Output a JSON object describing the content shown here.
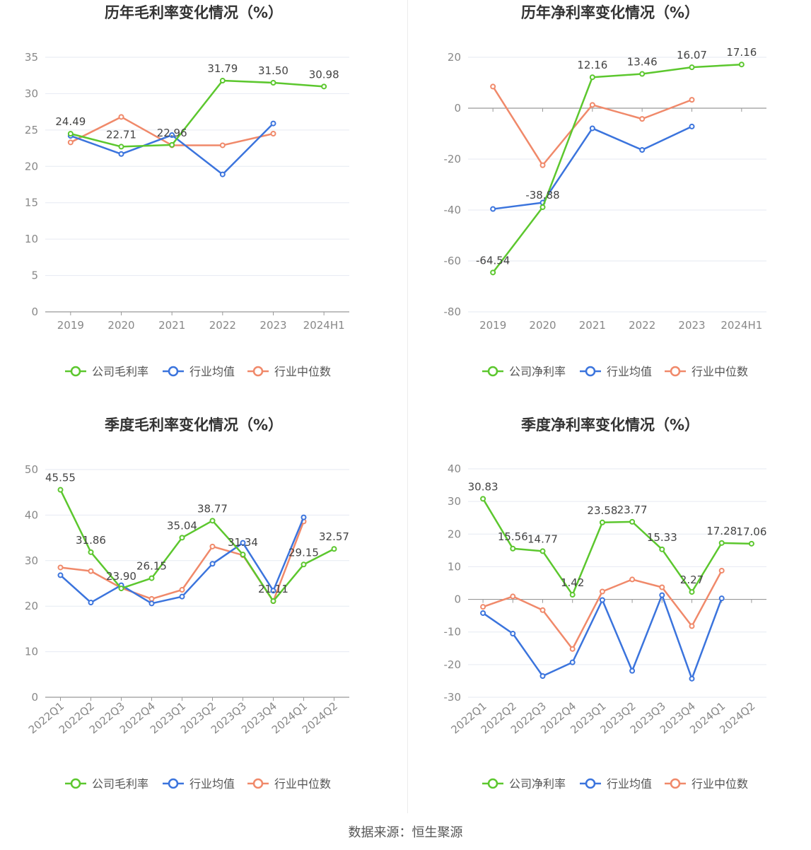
{
  "colors": {
    "company": "#5cc72e",
    "avg": "#3b74dd",
    "median": "#f0896a",
    "axis": "#888888",
    "grid": "#e6eaf2"
  },
  "legend": {
    "gross_company": "公司毛利率",
    "net_company": "公司净利率",
    "avg": "行业均值",
    "median": "行业中位数"
  },
  "footer": "数据来源：恒生聚源",
  "chart_data": [
    {
      "type": "line",
      "title": "历年毛利率变化情况（%）",
      "categories": [
        "2019",
        "2020",
        "2021",
        "2022",
        "2023",
        "2024H1"
      ],
      "ylim": [
        0,
        35
      ],
      "yticks": [
        0,
        5,
        10,
        15,
        20,
        25,
        30,
        35
      ],
      "rotated_labels": false,
      "series": [
        {
          "name": "公司毛利率",
          "values": [
            24.49,
            22.71,
            22.96,
            31.79,
            31.5,
            30.98
          ],
          "labeled": true
        },
        {
          "name": "行业均值",
          "values": [
            24.2,
            21.7,
            24.3,
            18.9,
            25.9,
            null
          ]
        },
        {
          "name": "行业中位数",
          "values": [
            23.3,
            26.8,
            22.9,
            22.9,
            24.5,
            null
          ]
        }
      ],
      "labels": [
        "24.49",
        "22.71",
        "22.96",
        "31.79",
        "31.50",
        "30.98"
      ]
    },
    {
      "type": "line",
      "title": "历年净利率变化情况（%）",
      "categories": [
        "2019",
        "2020",
        "2021",
        "2022",
        "2023",
        "2024H1"
      ],
      "ylim": [
        -80,
        20
      ],
      "yticks": [
        -80,
        -60,
        -40,
        -20,
        0,
        20
      ],
      "rotated_labels": false,
      "series": [
        {
          "name": "公司净利率",
          "values": [
            -64.54,
            -38.88,
            12.16,
            13.46,
            16.07,
            17.16
          ],
          "labeled": true
        },
        {
          "name": "行业均值",
          "values": [
            -39.6,
            -37.1,
            -7.9,
            -16.4,
            -7.2,
            null
          ]
        },
        {
          "name": "行业中位数",
          "values": [
            8.5,
            -22.4,
            1.3,
            -4.2,
            3.3,
            null
          ]
        }
      ],
      "labels": [
        "-64.54",
        "-38.88",
        "12.16",
        "13.46",
        "16.07",
        "17.16"
      ]
    },
    {
      "type": "line",
      "title": "季度毛利率变化情况（%）",
      "categories": [
        "2022Q1",
        "2022Q2",
        "2022Q3",
        "2022Q4",
        "2023Q1",
        "2023Q2",
        "2023Q3",
        "2023Q4",
        "2024Q1",
        "2024Q2"
      ],
      "ylim": [
        0,
        50
      ],
      "yticks": [
        0,
        10,
        20,
        30,
        40,
        50
      ],
      "rotated_labels": true,
      "series": [
        {
          "name": "公司毛利率",
          "values": [
            45.55,
            31.86,
            23.9,
            26.15,
            35.04,
            38.77,
            31.34,
            21.11,
            29.15,
            32.57
          ],
          "labeled": true
        },
        {
          "name": "行业均值",
          "values": [
            26.8,
            20.8,
            24.6,
            20.6,
            22.1,
            29.3,
            33.9,
            23.4,
            39.5,
            null
          ]
        },
        {
          "name": "行业中位数",
          "values": [
            28.5,
            27.7,
            24.0,
            21.6,
            23.6,
            33.1,
            31.2,
            21.1,
            38.6,
            null
          ]
        }
      ],
      "labels": [
        "45.55",
        "31.86",
        "23.90",
        "26.15",
        "35.04",
        "38.77",
        "31.34",
        "21.11",
        "29.15",
        "32.57"
      ]
    },
    {
      "type": "line",
      "title": "季度净利率变化情况（%）",
      "categories": [
        "2022Q1",
        "2022Q2",
        "2022Q3",
        "2022Q4",
        "2023Q1",
        "2023Q2",
        "2023Q3",
        "2023Q4",
        "2024Q1",
        "2024Q2"
      ],
      "ylim": [
        -30,
        40
      ],
      "yticks": [
        -30,
        -20,
        -10,
        0,
        10,
        20,
        30,
        40
      ],
      "rotated_labels": true,
      "series": [
        {
          "name": "公司净利率",
          "values": [
            30.83,
            15.56,
            14.77,
            1.42,
            23.58,
            23.77,
            15.33,
            2.27,
            17.28,
            17.06
          ],
          "labeled": true
        },
        {
          "name": "行业均值",
          "values": [
            -4.2,
            -10.5,
            -23.5,
            -19.3,
            -0.2,
            -21.9,
            1.3,
            -24.3,
            0.3,
            null
          ]
        },
        {
          "name": "行业中位数",
          "values": [
            -2.3,
            0.9,
            -3.3,
            -15.2,
            2.4,
            6.1,
            3.7,
            -8.2,
            8.8,
            null
          ]
        }
      ],
      "labels": [
        "30.83",
        "15.56",
        "14.77",
        "1.42",
        "23.58",
        "23.77",
        "15.33",
        "2.27",
        "17.28",
        "17.06"
      ]
    }
  ]
}
